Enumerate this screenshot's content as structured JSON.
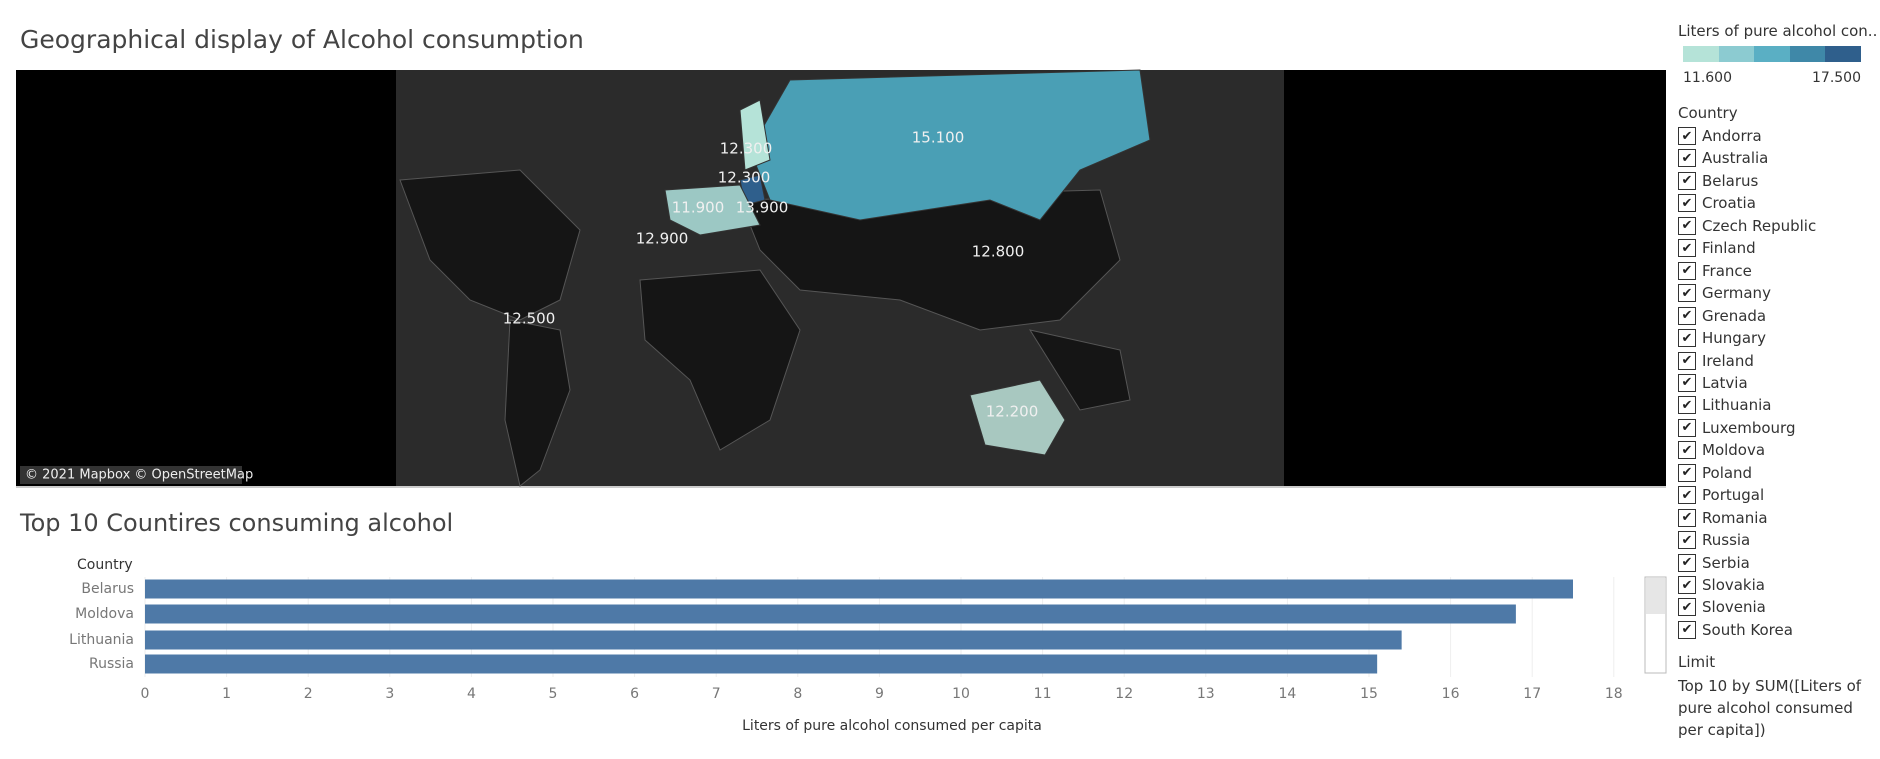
{
  "map": {
    "title": "Geographical display of Alcohol consumption",
    "labels": [
      "12.300",
      "12.300",
      "11.900",
      "13.900",
      "15.100",
      "12.900",
      "12.800",
      "12.500",
      "12.200"
    ],
    "attribution": "© 2021 Mapbox © OpenStreetMap"
  },
  "chart_data": {
    "type": "bar",
    "orientation": "horizontal",
    "title": "Top 10 Countires consuming alcohol",
    "y_label": "Country",
    "x_label": "Liters of pure alcohol consumed per capita",
    "categories": [
      "Belarus",
      "Moldova",
      "Lithuania",
      "Russia"
    ],
    "values": [
      17.5,
      16.8,
      15.4,
      15.1
    ],
    "color": "#4e79a7",
    "xlim": [
      0,
      18.3
    ],
    "xticks": [
      0,
      1,
      2,
      3,
      4,
      5,
      6,
      7,
      8,
      9,
      10,
      11,
      12,
      13,
      14,
      15,
      16,
      17,
      18
    ],
    "grid": true
  },
  "legend": {
    "title": "Liters of pure alcohol con..",
    "min": "11.600",
    "max": "17.500",
    "colors": [
      "#b5e3d8",
      "#8ccbd1",
      "#5aafc4",
      "#3f88a8",
      "#2f5f8c"
    ]
  },
  "filter": {
    "title": "Country",
    "items": [
      "Andorra",
      "Australia",
      "Belarus",
      "Croatia",
      "Czech Republic",
      "Finland",
      "France",
      "Germany",
      "Grenada",
      "Hungary",
      "Ireland",
      "Latvia",
      "Lithuania",
      "Luxembourg",
      "Moldova",
      "Poland",
      "Portugal",
      "Romania",
      "Russia",
      "Serbia",
      "Slovakia",
      "Slovenia",
      "South Korea"
    ]
  },
  "limit": {
    "title": "Limit",
    "text": "Top 10 by SUM([Liters of pure alcohol consumed per capita])"
  }
}
